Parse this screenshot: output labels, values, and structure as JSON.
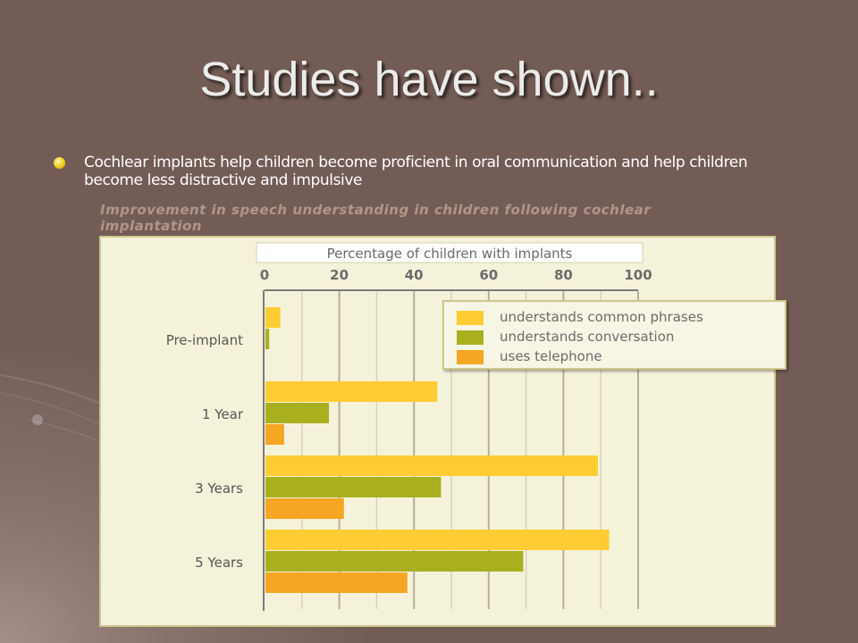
{
  "slide": {
    "title": "Studies have shown..",
    "bullet": "Cochlear implants help children become proficient in oral communication and help children become less distractive and impulsive",
    "figure_caption": "Improvement in speech understanding in children following cochlear implantation"
  },
  "colors": {
    "background": "#735c55",
    "panel": "#f5f2da",
    "series": [
      "#ffcc33",
      "#a8b020",
      "#f5a623"
    ]
  },
  "chart_data": {
    "type": "bar",
    "orientation": "horizontal",
    "xlabel": "Percentage of children with implants",
    "xlim": [
      0,
      100
    ],
    "xticks": [
      0,
      20,
      40,
      60,
      80,
      100
    ],
    "categories": [
      "Pre-implant",
      "1 Year",
      "3 Years",
      "5 Years"
    ],
    "series": [
      {
        "name": "understands common phrases",
        "color": "#ffcc33",
        "values": [
          4,
          46,
          89,
          92
        ]
      },
      {
        "name": "understands conversation",
        "color": "#a8b020",
        "values": [
          1,
          17,
          47,
          69
        ]
      },
      {
        "name": "uses telephone",
        "color": "#f5a623",
        "values": [
          0,
          5,
          21,
          38
        ]
      }
    ],
    "legend": "top-right",
    "grid": true
  }
}
